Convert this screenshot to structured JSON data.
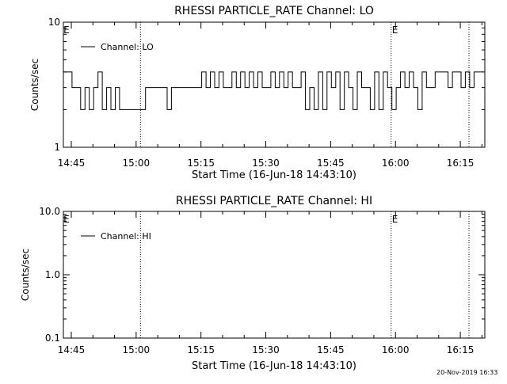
{
  "footer_timestamp": "20-Nov-2019 16:33",
  "chart_data": [
    {
      "type": "line",
      "title": "RHESSI PARTICLE_RATE Channel: LO",
      "xlabel": "Start Time (16-Jun-18 14:43:10)",
      "ylabel": "Counts/sec",
      "x_ticks": [
        "14:45",
        "15:00",
        "15:15",
        "15:30",
        "15:45",
        "16:00",
        "16:15"
      ],
      "y_scale": "log",
      "y_ticks": [
        "1",
        "10"
      ],
      "ylim": [
        1,
        10
      ],
      "legend": "top-left",
      "series": [
        {
          "name": "Channel: LO",
          "x_minutes": [
            0,
            1,
            2,
            3,
            4,
            5,
            6,
            7,
            8,
            9,
            10,
            11,
            12,
            13,
            14,
            15,
            16,
            17,
            18,
            19,
            20,
            21,
            22,
            23,
            24,
            25,
            26,
            27,
            28,
            29,
            30,
            31,
            32,
            33,
            34,
            35,
            36,
            37,
            38,
            39,
            40,
            41,
            42,
            43,
            44,
            45,
            46,
            47,
            48,
            49,
            50,
            51,
            52,
            53,
            54,
            55,
            56,
            57,
            58,
            59,
            60,
            61,
            62,
            63,
            64,
            65,
            66,
            67,
            68,
            69,
            70,
            71,
            72,
            73,
            74,
            75,
            76,
            77,
            78,
            79,
            80,
            81,
            82,
            83,
            84,
            85,
            86,
            87,
            88,
            89,
            90,
            91,
            92,
            93,
            94,
            95,
            96
          ],
          "values": [
            4,
            4,
            3,
            3,
            2,
            3,
            2,
            3,
            4,
            2,
            3,
            2,
            3,
            2,
            2,
            2,
            2,
            2,
            2,
            3,
            3,
            3,
            3,
            3,
            2,
            3,
            3,
            3,
            3,
            3,
            3,
            3,
            4,
            3,
            4,
            3,
            4,
            3,
            3,
            4,
            3,
            4,
            3,
            4,
            3,
            4,
            3,
            3,
            4,
            3,
            4,
            3,
            4,
            3,
            3,
            4,
            2,
            3,
            2,
            4,
            2,
            4,
            3,
            4,
            2,
            4,
            3,
            2,
            4,
            3,
            3,
            2,
            4,
            2,
            4,
            3,
            2,
            3,
            4,
            3,
            4,
            3,
            2,
            4,
            3,
            3,
            4,
            4,
            4,
            3,
            4,
            4,
            3,
            4,
            3,
            4,
            4
          ]
        }
      ],
      "markers": [
        {
          "label": "E",
          "time": "14:43"
        },
        {
          "label": "E",
          "time": "15:59"
        }
      ],
      "vlines": [
        "15:01",
        "15:59",
        "16:17"
      ]
    },
    {
      "type": "line",
      "title": "RHESSI PARTICLE_RATE Channel: HI",
      "xlabel": "Start Time (16-Jun-18 14:43:10)",
      "ylabel": "Counts/sec",
      "x_ticks": [
        "14:45",
        "15:00",
        "15:15",
        "15:30",
        "15:45",
        "16:00",
        "16:15"
      ],
      "y_scale": "log",
      "y_ticks": [
        "0.1",
        "1.0",
        "10.0"
      ],
      "ylim": [
        0.1,
        10
      ],
      "legend": "top-left",
      "series": [
        {
          "name": "Channel: HI",
          "x_minutes": [],
          "values": []
        }
      ],
      "markers": [
        {
          "label": "E",
          "time": "14:43"
        },
        {
          "label": "E",
          "time": "15:59"
        }
      ],
      "vlines": [
        "15:01",
        "15:59",
        "16:17"
      ]
    }
  ]
}
